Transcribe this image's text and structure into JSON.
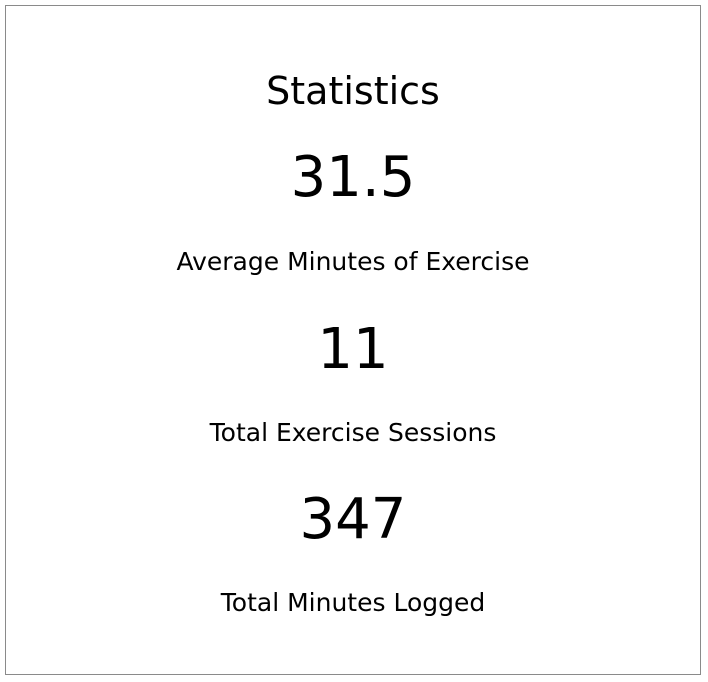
{
  "title": "Statistics",
  "stats": [
    {
      "value": "31.5",
      "label": "Average Minutes of Exercise"
    },
    {
      "value": "11",
      "label": "Total Exercise Sessions"
    },
    {
      "value": "347",
      "label": "Total Minutes Logged"
    }
  ]
}
